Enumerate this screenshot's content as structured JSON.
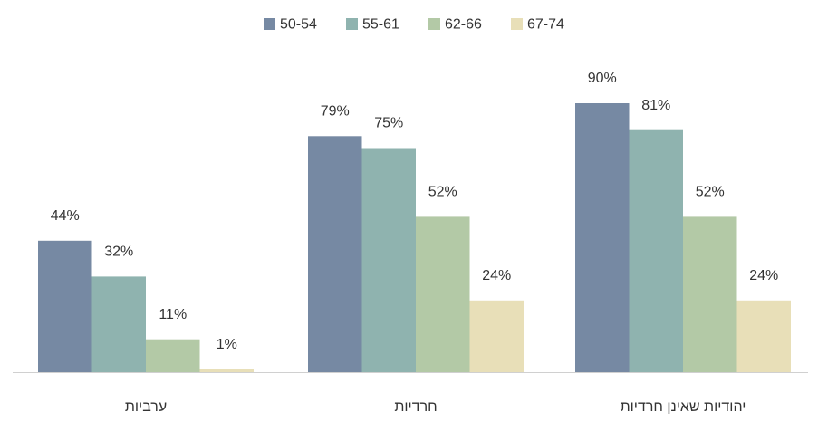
{
  "chart_data": {
    "type": "bar",
    "categories": [
      "ערביות",
      "חרדיות",
      "יהודיות שאינן חרדיות"
    ],
    "series": [
      {
        "name": "50-54",
        "color": "#7689a3",
        "values": [
          44,
          79,
          90
        ],
        "value_labels": [
          "44%",
          "79%",
          "90%"
        ]
      },
      {
        "name": "55-61",
        "color": "#8fb3af",
        "values": [
          32,
          75,
          81
        ],
        "value_labels": [
          "32%",
          "75%",
          "81%"
        ]
      },
      {
        "name": "62-66",
        "color": "#b3c9a6",
        "values": [
          11,
          52,
          52
        ],
        "value_labels": [
          "11%",
          "52%",
          "52%"
        ]
      },
      {
        "name": "67-74",
        "color": "#e8dfb8",
        "values": [
          1,
          24,
          24
        ],
        "value_labels": [
          "1%",
          "24%",
          "24%"
        ]
      }
    ],
    "legend": "top"
  }
}
